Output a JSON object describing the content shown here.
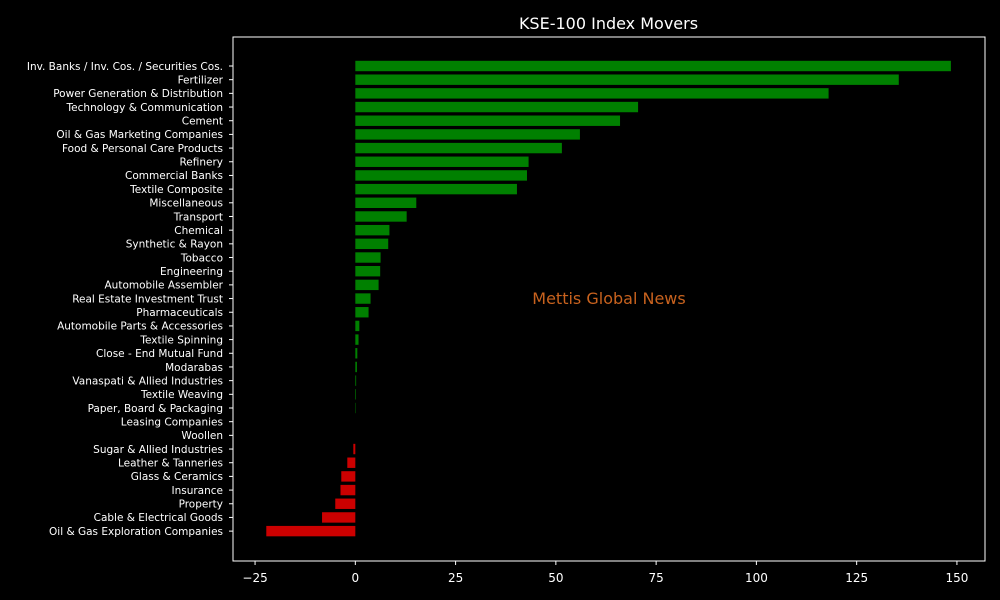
{
  "chart_data": {
    "type": "bar",
    "orientation": "horizontal",
    "title": "KSE-100 Index Movers",
    "xlabel": "",
    "ylabel": "",
    "xlim": [
      -30.5,
      157
    ],
    "xticks": [
      -25,
      0,
      25,
      50,
      75,
      100,
      125,
      150
    ],
    "xtick_labels": [
      "−25",
      "0",
      "25",
      "50",
      "75",
      "100",
      "125",
      "150"
    ],
    "grid": false,
    "legend": "none",
    "colors": {
      "positive": "#008000",
      "negative": "#cc0000",
      "background": "#000000",
      "axes": "#ffffff",
      "watermark": "#c8621e"
    },
    "watermark": "Mettis Global News",
    "categories": [
      "Inv. Banks / Inv. Cos. / Securities Cos.",
      "Fertilizer",
      "Power Generation & Distribution",
      "Technology & Communication",
      "Cement",
      "Oil & Gas Marketing Companies",
      "Food & Personal Care Products",
      "Refinery",
      "Commercial Banks",
      "Textile Composite",
      "Miscellaneous",
      "Transport",
      "Chemical",
      "Synthetic & Rayon",
      "Tobacco",
      "Engineering",
      "Automobile Assembler",
      "Real Estate Investment Trust",
      "Pharmaceuticals",
      "Automobile Parts & Accessories",
      "Textile Spinning",
      "Close - End Mutual Fund",
      "Modarabas",
      "Vanaspati & Allied Industries",
      "Textile Weaving",
      "Paper, Board & Packaging",
      "Leasing Companies",
      "Woollen",
      "Sugar & Allied Industries",
      "Leather & Tanneries",
      "Glass & Ceramics",
      "Insurance",
      "Property",
      "Cable & Electrical Goods",
      "Oil & Gas Exploration Companies"
    ],
    "values": [
      148.5,
      135.5,
      118.0,
      70.5,
      66.0,
      56.0,
      51.5,
      43.2,
      42.8,
      40.3,
      15.2,
      12.8,
      8.5,
      8.2,
      6.3,
      6.2,
      5.8,
      3.8,
      3.3,
      1.0,
      0.8,
      0.5,
      0.4,
      0.2,
      0.15,
      0.1,
      0.0,
      0.0,
      -0.5,
      -2.0,
      -3.5,
      -3.7,
      -5.0,
      -8.3,
      -22.2
    ]
  }
}
